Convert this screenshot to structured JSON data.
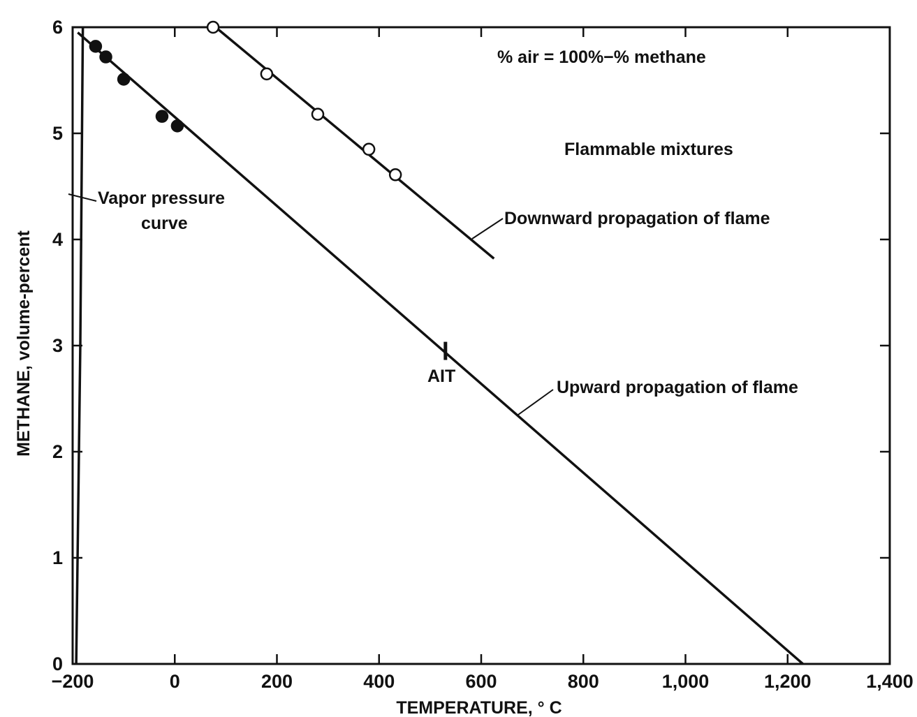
{
  "chart_data": {
    "type": "line",
    "xlabel": "TEMPERATURE, ° C",
    "ylabel": "METHANE, volume-percent",
    "xlim": [
      -200,
      1400
    ],
    "ylim": [
      0,
      6
    ],
    "x_ticks": [
      -200,
      0,
      200,
      400,
      600,
      800,
      1000,
      1200,
      1400
    ],
    "x_tick_labels": [
      "−200",
      "0",
      "200",
      "400",
      "600",
      "800",
      "1,000",
      "1,200",
      "1,400"
    ],
    "y_ticks": [
      0,
      1,
      2,
      3,
      4,
      5,
      6
    ],
    "y_tick_labels": [
      "0",
      "1",
      "2",
      "3",
      "4",
      "5",
      "6"
    ],
    "grid": false,
    "series": [
      {
        "name": "Upward propagation of flame",
        "kind": "line",
        "x": [
          -190,
          1230
        ],
        "y": [
          5.95,
          0.0
        ]
      },
      {
        "name": "Upward propagation of flame",
        "kind": "points",
        "marker": "filled-circle",
        "x": [
          -155,
          -135,
          -100,
          -25,
          5
        ],
        "y": [
          5.82,
          5.72,
          5.51,
          5.16,
          5.07
        ]
      },
      {
        "name": "Downward propagation of flame",
        "kind": "line",
        "x": [
          80,
          625
        ],
        "y": [
          6.0,
          3.82
        ]
      },
      {
        "name": "Downward propagation of flame",
        "kind": "points",
        "marker": "open-circle",
        "x": [
          75,
          180,
          280,
          380,
          432
        ],
        "y": [
          6.0,
          5.56,
          5.18,
          4.85,
          4.61
        ]
      },
      {
        "name": "Vapor pressure curve",
        "kind": "line",
        "x": [
          -193,
          -185,
          -180
        ],
        "y": [
          0.0,
          3.0,
          6.0
        ]
      }
    ],
    "ait": {
      "x": 530,
      "y": 2.95,
      "label": "AIT"
    },
    "annotations": {
      "formula": "% air = 100%−% methane",
      "region": "Flammable mixtures",
      "downward": "Downward propagation of flame",
      "upward": "Upward propagation of flame",
      "vapor_line1": "Vapor pressure",
      "vapor_line2": "curve"
    }
  }
}
